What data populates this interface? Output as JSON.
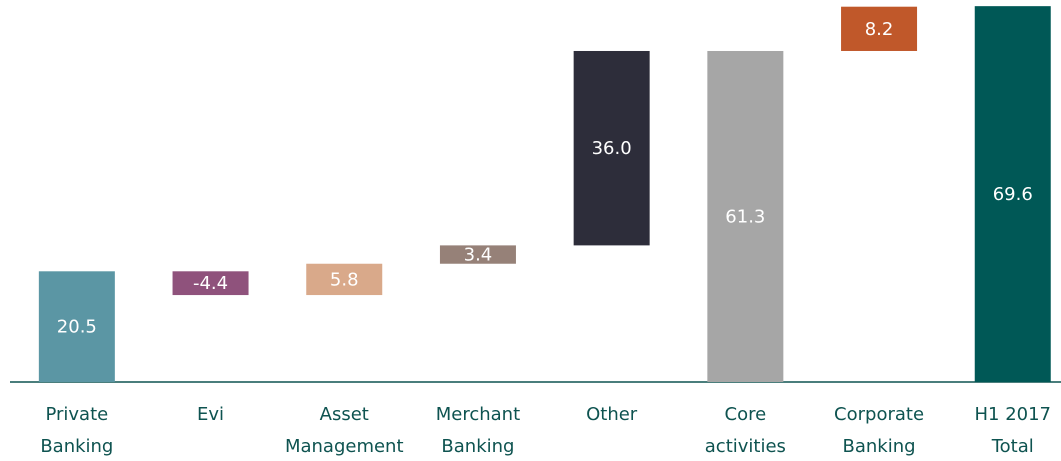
{
  "chart_data": {
    "type": "waterfall",
    "categories": [
      [
        "Private",
        "Banking"
      ],
      [
        "Evi"
      ],
      [
        "Asset",
        "Management"
      ],
      [
        "Merchant",
        "Banking"
      ],
      [
        "Other"
      ],
      [
        "Core",
        "activities"
      ],
      [
        "Corporate",
        "Banking"
      ],
      [
        "H1 2017",
        "Total"
      ]
    ],
    "values": [
      20.5,
      -4.4,
      5.8,
      3.4,
      36.0,
      61.3,
      8.2,
      69.6
    ],
    "value_labels": [
      "20.5",
      "-4.4",
      "5.8",
      "3.4",
      "36.0",
      "61.3",
      "8.2",
      "69.6"
    ],
    "is_total": [
      false,
      false,
      false,
      false,
      false,
      true,
      false,
      true
    ],
    "colors": [
      "#5b96a4",
      "#8f527c",
      "#d9a98a",
      "#968178",
      "#2d2d3a",
      "#a6a6a6",
      "#c0582a",
      "#005856"
    ],
    "ylim": [
      0,
      70
    ]
  }
}
